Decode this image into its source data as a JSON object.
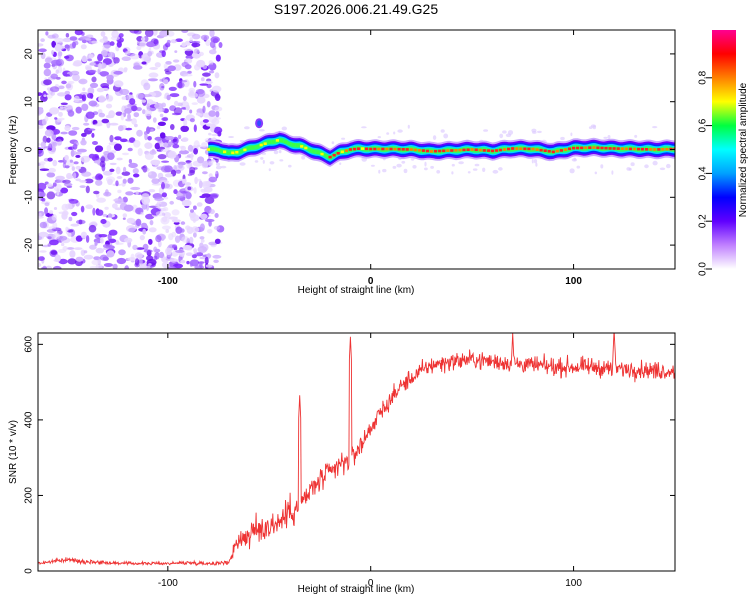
{
  "title": "S197.2026.006.21.49.G25",
  "chart_data": [
    {
      "type": "heatmap",
      "name": "spectrogram",
      "xlabel": "Height of straight line (km)",
      "ylabel": "Frequency (Hz)",
      "xlim": [
        -164,
        150
      ],
      "ylim": [
        -25,
        25
      ],
      "xticks": [
        -100,
        0,
        100
      ],
      "yticks": [
        -20,
        -10,
        0,
        10,
        20
      ],
      "noise_region_x": [
        -164,
        -74
      ],
      "signal_start_x": -80,
      "ridge": {
        "x": [
          -80,
          -75,
          -70,
          -65,
          -60,
          -55,
          -50,
          -45,
          -40,
          -35,
          -30,
          -25,
          -20,
          -15,
          -10,
          -5,
          0,
          10,
          20,
          30,
          40,
          50,
          60,
          70,
          80,
          90,
          100,
          110,
          120,
          130,
          140,
          150
        ],
        "freq": [
          0,
          0,
          -0.8,
          -0.5,
          0.2,
          0.8,
          1.5,
          2,
          1.2,
          0.8,
          0,
          -0.8,
          -1.6,
          -0.6,
          0,
          0.2,
          0.1,
          0.1,
          0,
          -0.4,
          -0.2,
          0,
          -0.3,
          0.2,
          0.1,
          -0.5,
          0.3,
          0.4,
          0.2,
          0.1,
          0,
          0.1
        ]
      },
      "colorbar": {
        "label": "Normalized spectral amplitude",
        "range": [
          0,
          1
        ],
        "ticks": [
          "0.0",
          "0.2",
          "0.4",
          "0.6",
          "0.8"
        ],
        "colors": [
          "#ffffff",
          "#c080ff",
          "#6000ff",
          "#0000ff",
          "#00a0ff",
          "#00ffff",
          "#00ff40",
          "#ffff00",
          "#ff8000",
          "#ff0000",
          "#ff0090"
        ]
      }
    },
    {
      "type": "line",
      "name": "snr",
      "xlabel": "Height of straight line (km)",
      "ylabel": "SNR (10 * v/v)",
      "xlim": [
        -164,
        150
      ],
      "ylim": [
        0,
        630
      ],
      "xticks": [
        -100,
        0,
        100
      ],
      "yticks": [
        0,
        200,
        400,
        600
      ],
      "color": "#ee3333",
      "x": [
        -164,
        -150,
        -140,
        -130,
        -120,
        -110,
        -100,
        -90,
        -80,
        -70,
        -66,
        -60,
        -55,
        -50,
        -45,
        -40,
        -35,
        -30,
        -25,
        -20,
        -15,
        -10,
        -5,
        0,
        5,
        10,
        15,
        20,
        25,
        30,
        40,
        50,
        60,
        70,
        80,
        90,
        100,
        110,
        120,
        130,
        140,
        150
      ],
      "values": [
        20,
        30,
        25,
        22,
        20,
        20,
        20,
        22,
        20,
        22,
        80,
        95,
        110,
        120,
        130,
        160,
        170,
        210,
        240,
        260,
        280,
        300,
        330,
        380,
        420,
        455,
        490,
        510,
        530,
        545,
        555,
        560,
        555,
        550,
        545,
        540,
        540,
        540,
        535,
        535,
        530,
        530
      ],
      "noise": [
        5,
        6,
        6,
        5,
        4,
        4,
        4,
        5,
        5,
        6,
        30,
        40,
        45,
        45,
        45,
        45,
        40,
        40,
        35,
        35,
        35,
        35,
        30,
        28,
        25,
        25,
        25,
        25,
        25,
        25,
        25,
        25,
        25,
        25,
        25,
        25,
        25,
        25,
        25,
        25,
        25,
        25
      ],
      "spikes": [
        {
          "x": -35,
          "y": 465
        },
        {
          "x": -10,
          "y": 620
        },
        {
          "x": 70,
          "y": 630
        },
        {
          "x": 120,
          "y": 640
        }
      ]
    }
  ]
}
